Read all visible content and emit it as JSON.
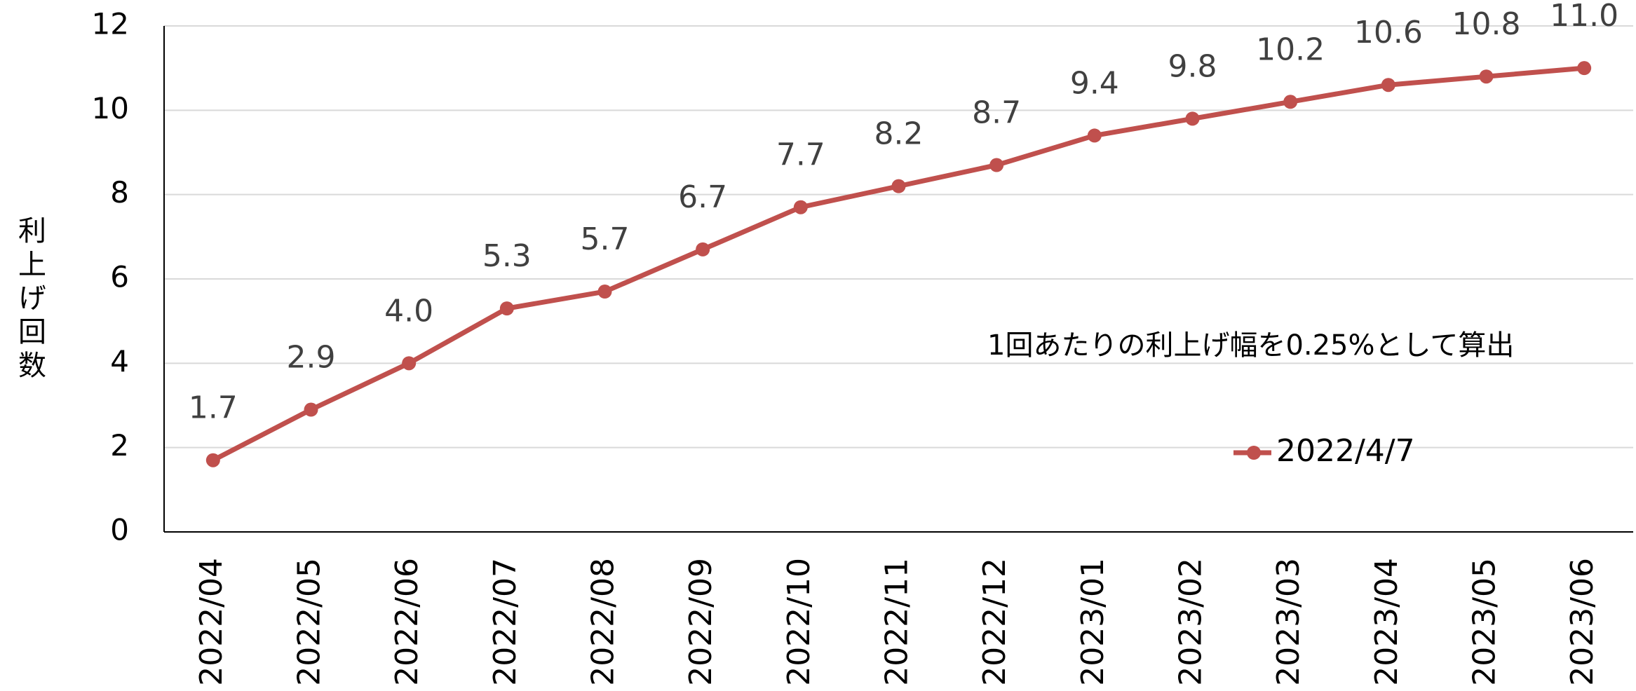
{
  "chart_data": {
    "type": "line",
    "y_label": "利上げ回数",
    "annotation": "1回あたりの利上げ幅を0.25%として算出",
    "categories": [
      "2022/04",
      "2022/05",
      "2022/06",
      "2022/07",
      "2022/08",
      "2022/09",
      "2022/10",
      "2022/11",
      "2022/12",
      "2023/01",
      "2023/02",
      "2023/03",
      "2023/04",
      "2023/05",
      "2023/06"
    ],
    "series": [
      {
        "name": "2022/4/7",
        "color": "#c0504d",
        "values": [
          1.7,
          2.9,
          4.0,
          5.3,
          5.7,
          6.7,
          7.7,
          8.2,
          8.7,
          9.4,
          9.8,
          10.2,
          10.6,
          10.8,
          11.0
        ],
        "value_labels": [
          "1.7",
          "2.9",
          "4.0",
          "5.3",
          "5.7",
          "6.7",
          "7.7",
          "8.2",
          "8.7",
          "9.4",
          "9.8",
          "10.2",
          "10.6",
          "10.8",
          "11.0"
        ]
      }
    ],
    "ylim": [
      0,
      12
    ],
    "yticks": [
      0,
      2,
      4,
      6,
      8,
      10,
      12
    ],
    "grid": true,
    "legend": "lower right"
  }
}
